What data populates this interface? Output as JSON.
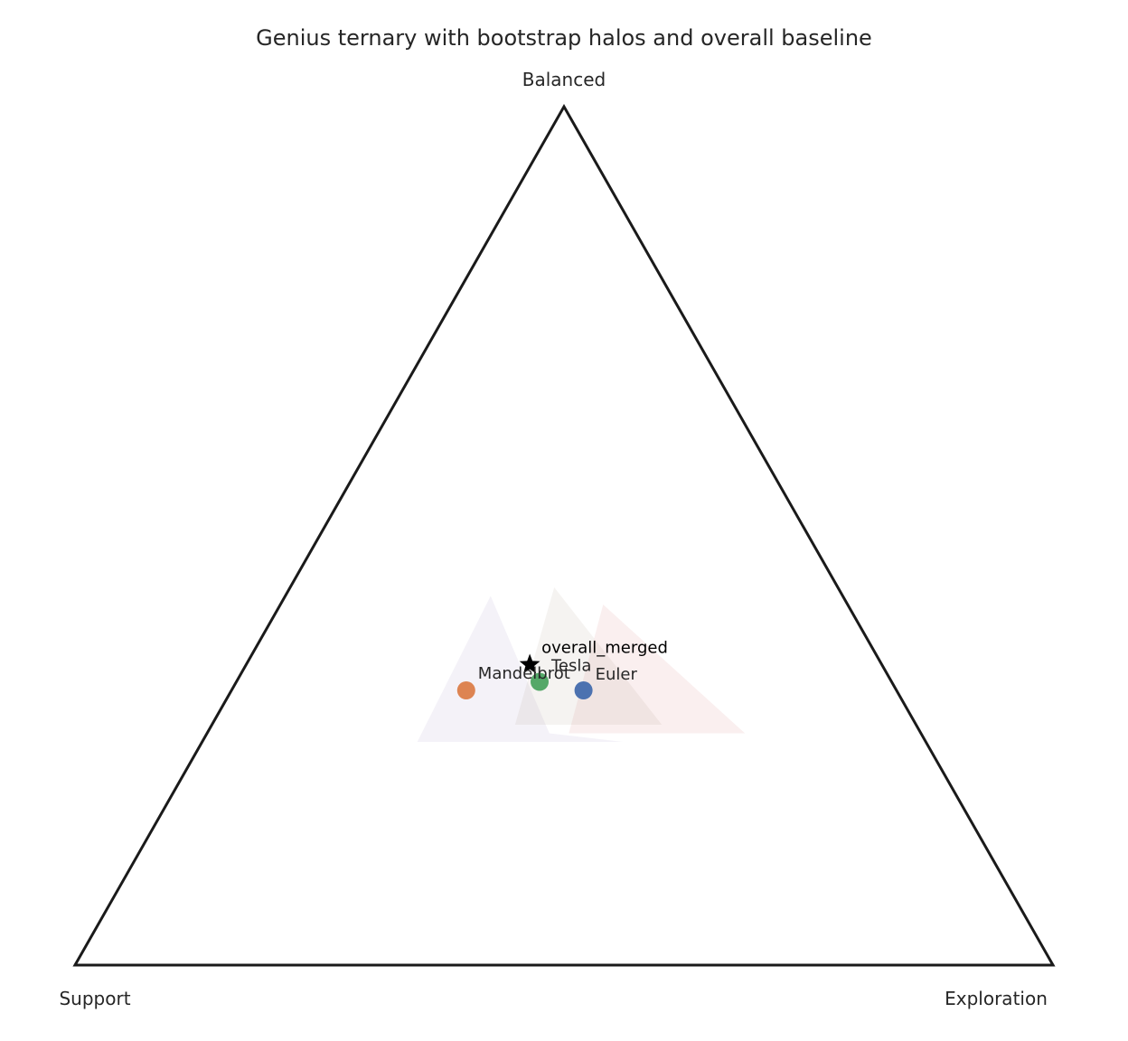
{
  "chart_data": {
    "type": "scatter",
    "subtype": "ternary",
    "title": "Genius ternary with bootstrap halos and overall baseline",
    "vertices": {
      "top": "Balanced",
      "left": "Support",
      "right": "Exploration"
    },
    "grid": false,
    "legend": "none",
    "series": [
      {
        "name": "Mandelbrot",
        "color": "#dd8452",
        "halo_color": "#8172b3",
        "point": {
          "support": 0.44,
          "exploration": 0.24,
          "balanced": 0.32
        },
        "halo": [
          {
            "support": 0.36,
            "exploration": 0.21,
            "balanced": 0.43
          },
          {
            "support": 0.52,
            "exploration": 0.22,
            "balanced": 0.26
          },
          {
            "support": 0.31,
            "exploration": 0.43,
            "balanced": 0.26
          },
          {
            "support": 0.38,
            "exploration": 0.35,
            "balanced": 0.27
          }
        ]
      },
      {
        "name": "Tesla",
        "color": "#55a868",
        "halo_color": "#937860",
        "point": {
          "support": 0.36,
          "exploration": 0.31,
          "balanced": 0.33
        },
        "halo": [
          {
            "support": 0.29,
            "exploration": 0.27,
            "balanced": 0.44
          },
          {
            "support": 0.41,
            "exploration": 0.31,
            "balanced": 0.28
          },
          {
            "support": 0.26,
            "exploration": 0.46,
            "balanced": 0.28
          }
        ]
      },
      {
        "name": "Euler",
        "color": "#4c72b0",
        "halo_color": "#c44e52",
        "point": {
          "support": 0.32,
          "exploration": 0.36,
          "balanced": 0.32
        },
        "halo": [
          {
            "support": 0.25,
            "exploration": 0.33,
            "balanced": 0.42
          },
          {
            "support": 0.36,
            "exploration": 0.37,
            "balanced": 0.27
          },
          {
            "support": 0.18,
            "exploration": 0.55,
            "balanced": 0.27
          }
        ]
      }
    ],
    "baseline": {
      "name": "overall_merged",
      "marker": "star",
      "color": "#000000",
      "point": {
        "support": 0.36,
        "exploration": 0.29,
        "balanced": 0.35
      }
    }
  }
}
